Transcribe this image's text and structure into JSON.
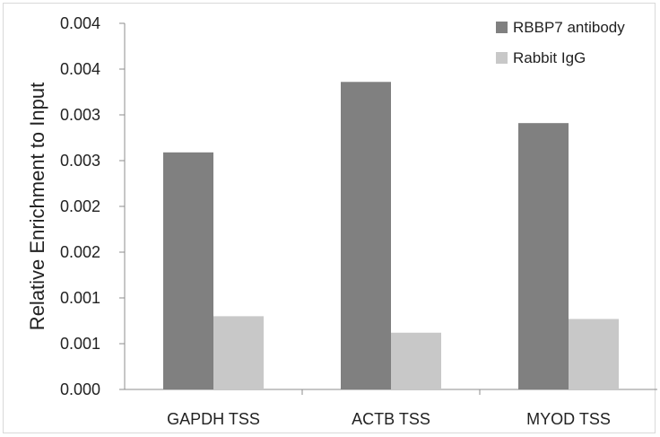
{
  "chart_data": {
    "type": "bar",
    "title": "",
    "xlabel": "",
    "ylabel": "Relative Enrichment to Input",
    "categories": [
      "GAPDH TSS",
      "ACTB TSS",
      "MYOD TSS"
    ],
    "series": [
      {
        "name": "RBBP7 antibody",
        "values": [
          0.00259,
          0.00336,
          0.00291
        ],
        "color": "#808080"
      },
      {
        "name": "Rabbit IgG",
        "values": [
          0.0008,
          0.00062,
          0.00077
        ],
        "color": "#c8c8c8"
      }
    ],
    "yticks": [
      "0.000",
      "0.001",
      "0.001",
      "0.002",
      "0.002",
      "0.003",
      "0.003",
      "0.004",
      "0.004"
    ],
    "ylim": [
      0,
      0.004
    ],
    "grid": false,
    "legend_position": "top-right"
  }
}
